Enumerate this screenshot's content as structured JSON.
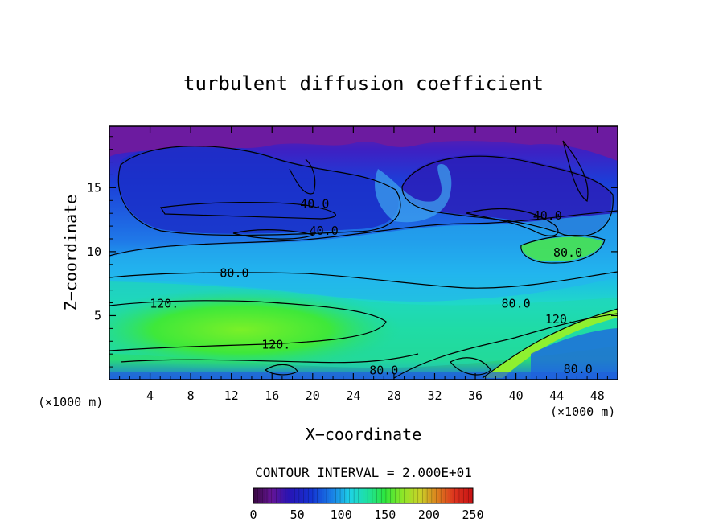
{
  "chart_data": {
    "type": "heatmap",
    "title": "turbulent diffusion coefficient",
    "xlabel": "X−coordinate",
    "ylabel": "Z−coordinate",
    "x_unit_left": "(×1000 m)",
    "x_unit_right": "(×1000 m)",
    "xlim": [
      0,
      50
    ],
    "ylim": [
      0,
      19.8
    ],
    "x_ticks": [
      4,
      8,
      12,
      16,
      20,
      24,
      28,
      32,
      36,
      40,
      44,
      48
    ],
    "y_ticks": [
      5,
      10,
      15
    ],
    "contour_interval_text": "CONTOUR INTERVAL = 2.000E+01",
    "contour_labels": [
      {
        "text": "40.0",
        "x": 20.2,
        "y": 13.6
      },
      {
        "text": "40.0",
        "x": 21.1,
        "y": 11.5
      },
      {
        "text": "40.0",
        "x": 43.1,
        "y": 12.7
      },
      {
        "text": "80.0",
        "x": 12.3,
        "y": 8.2
      },
      {
        "text": "80.0",
        "x": 45.1,
        "y": 9.8
      },
      {
        "text": "80.0",
        "x": 40.0,
        "y": 5.8
      },
      {
        "text": "80.0",
        "x": 27.0,
        "y": 0.6
      },
      {
        "text": "80.0",
        "x": 46.1,
        "y": 0.7
      },
      {
        "text": "120.",
        "x": 5.4,
        "y": 5.8
      },
      {
        "text": "120.",
        "x": 16.4,
        "y": 2.6
      },
      {
        "text": "120.",
        "x": 44.3,
        "y": 4.6
      }
    ],
    "colorbar": {
      "min": 0,
      "max": 250,
      "tick_labels": [
        "0",
        "50",
        "100",
        "150",
        "200",
        "250"
      ]
    },
    "colors": {
      "low": "#6a1b9a",
      "mid_low": "#1a3fd6",
      "mid": "#1fd2e6",
      "mid_high": "#38e830",
      "high": "#d81818"
    }
  }
}
